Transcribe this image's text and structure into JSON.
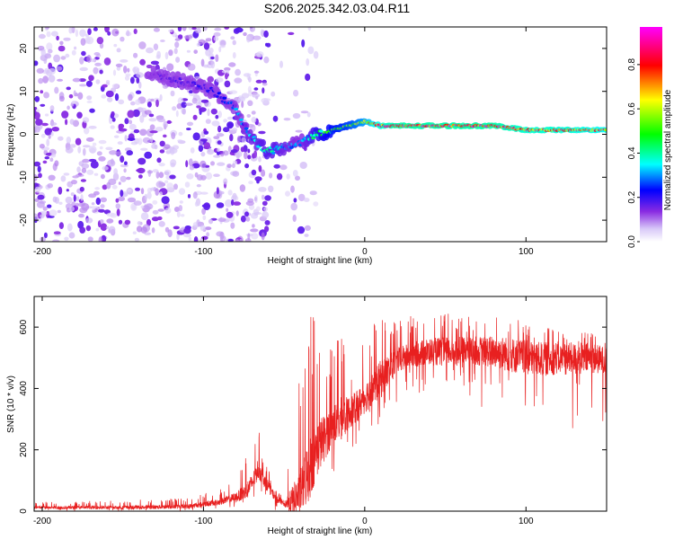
{
  "title": "S206.2025.342.03.04.R11",
  "colors": {
    "snr_line": "#e82020",
    "spectrogram_palette": [
      "#ffffff",
      "#8a2be2",
      "#0000ff",
      "#00ffff",
      "#00ff00",
      "#ffff00",
      "#ff0000",
      "#ff00ff"
    ]
  },
  "chart_data": [
    {
      "type": "heatmap",
      "title": "S206.2025.342.03.04.R11",
      "xlabel": "Height of straight line (km)",
      "ylabel": "Frequency (Hz)",
      "xlim": [
        -205,
        150
      ],
      "ylim": [
        -25,
        25
      ],
      "x_ticks": [
        -200,
        -100,
        0,
        100
      ],
      "x_tick_labels": [
        "-200",
        "-100",
        "0",
        "100"
      ],
      "y_ticks": [
        -20,
        -10,
        0,
        10,
        20
      ],
      "y_tick_labels": [
        "-20",
        "-10",
        "0",
        "10",
        "20"
      ],
      "colorbar": {
        "label": "Normalized spectral amplitude",
        "range": [
          0,
          0.97
        ],
        "ticks": [
          0,
          0.2,
          0.4,
          0.6,
          0.8
        ],
        "tick_labels": [
          "0.0",
          "0.2",
          "0.4",
          "0.6",
          "0.8"
        ]
      },
      "ridge": {
        "description": "dominant frequency track (Hz) vs height (km)",
        "x": [
          -130,
          -110,
          -100,
          -90,
          -80,
          -75,
          -70,
          -60,
          -50,
          -40,
          -30,
          -20,
          -10,
          0,
          10,
          20,
          40,
          60,
          80,
          100,
          120,
          150
        ],
        "freq": [
          14,
          12,
          11,
          9,
          6,
          2,
          -1,
          -4,
          -3,
          -2,
          0,
          1,
          2,
          3,
          2,
          2,
          2,
          2,
          2,
          1,
          1,
          1
        ],
        "amplitude": [
          0.15,
          0.18,
          0.2,
          0.22,
          0.3,
          0.3,
          0.35,
          0.4,
          0.35,
          0.3,
          0.45,
          0.55,
          0.6,
          0.7,
          0.85,
          0.9,
          0.9,
          0.9,
          0.9,
          0.85,
          0.85,
          0.8
        ]
      },
      "noise_region": {
        "x_range": [
          -205,
          -60
        ],
        "freq_range": [
          -25,
          25
        ],
        "amplitude": "0.0-0.15"
      }
    },
    {
      "type": "line",
      "xlabel": "Height of straight line (km)",
      "ylabel": "SNR (10 * v/v)",
      "xlim": [
        -205,
        150
      ],
      "ylim": [
        0,
        700
      ],
      "x_ticks": [
        -200,
        -100,
        0,
        100
      ],
      "x_tick_labels": [
        "-200",
        "-100",
        "0",
        "100"
      ],
      "y_ticks": [
        0,
        200,
        400,
        600
      ],
      "y_tick_labels": [
        "0",
        "200",
        "400",
        "600"
      ],
      "series": [
        {
          "name": "SNR",
          "envelope_x": [
            -205,
            -150,
            -110,
            -90,
            -80,
            -75,
            -70,
            -66,
            -62,
            -55,
            -50,
            -45,
            -40,
            -35,
            -30,
            -25,
            -20,
            -15,
            -10,
            -5,
            0,
            5,
            10,
            15,
            20,
            30,
            40,
            50,
            60,
            80,
            90,
            100,
            110,
            120,
            130,
            140,
            150
          ],
          "baseline": [
            12,
            12,
            15,
            30,
            45,
            60,
            90,
            140,
            100,
            40,
            25,
            30,
            60,
            130,
            200,
            240,
            280,
            300,
            320,
            340,
            370,
            400,
            430,
            460,
            490,
            510,
            520,
            520,
            525,
            520,
            510,
            500,
            495,
            500,
            495,
            500,
            490
          ],
          "max": [
            30,
            35,
            45,
            70,
            110,
            170,
            210,
            270,
            170,
            70,
            60,
            320,
            440,
            680,
            640,
            560,
            540,
            600,
            500,
            520,
            560,
            600,
            690,
            640,
            620,
            640,
            650,
            660,
            630,
            650,
            640,
            620,
            600,
            610,
            600,
            590,
            580
          ],
          "min": [
            0,
            0,
            0,
            5,
            10,
            20,
            30,
            50,
            20,
            0,
            0,
            0,
            0,
            0,
            50,
            80,
            120,
            150,
            170,
            200,
            230,
            260,
            290,
            320,
            350,
            380,
            370,
            360,
            360,
            320,
            280,
            260,
            250,
            270,
            260,
            270,
            300
          ]
        }
      ]
    }
  ]
}
